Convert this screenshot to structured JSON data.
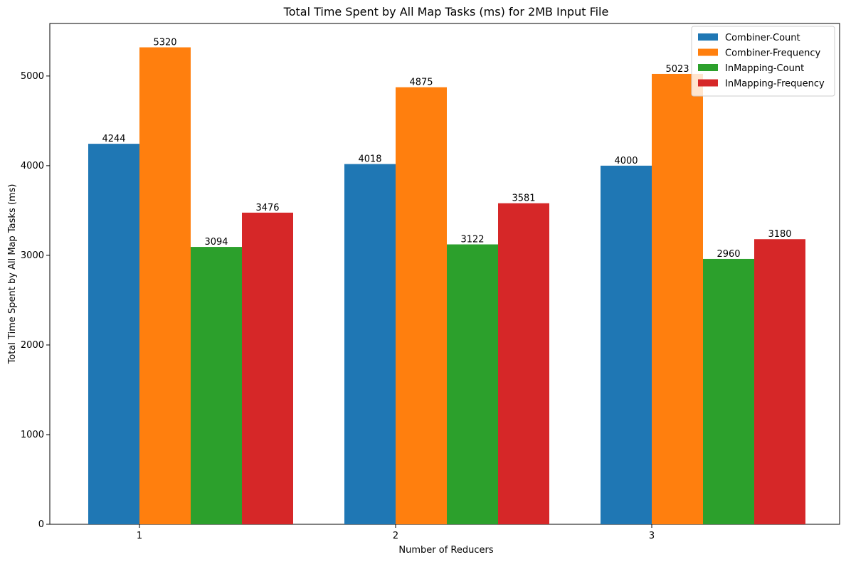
{
  "chart_data": {
    "type": "bar",
    "title": "Total Time Spent by All Map Tasks (ms) for 2MB Input File",
    "xlabel": "Number of Reducers",
    "ylabel": "Total Time Spent by All Map Tasks (ms)",
    "categories": [
      "1",
      "2",
      "3"
    ],
    "ylim": [
      0,
      5586
    ],
    "yticks": [
      0,
      1000,
      2000,
      3000,
      4000,
      5000
    ],
    "legend_position": "top-right",
    "grid": false,
    "series": [
      {
        "name": "Combiner-Count",
        "color": "#1f77b4",
        "values": [
          4244,
          4018,
          4000
        ]
      },
      {
        "name": "Combiner-Frequency",
        "color": "#ff7f0e",
        "values": [
          5320,
          4875,
          5023
        ]
      },
      {
        "name": "InMapping-Count",
        "color": "#2ca02c",
        "values": [
          3094,
          3122,
          2960
        ]
      },
      {
        "name": "InMapping-Frequency",
        "color": "#d62728",
        "values": [
          3476,
          3581,
          3180
        ]
      }
    ]
  }
}
